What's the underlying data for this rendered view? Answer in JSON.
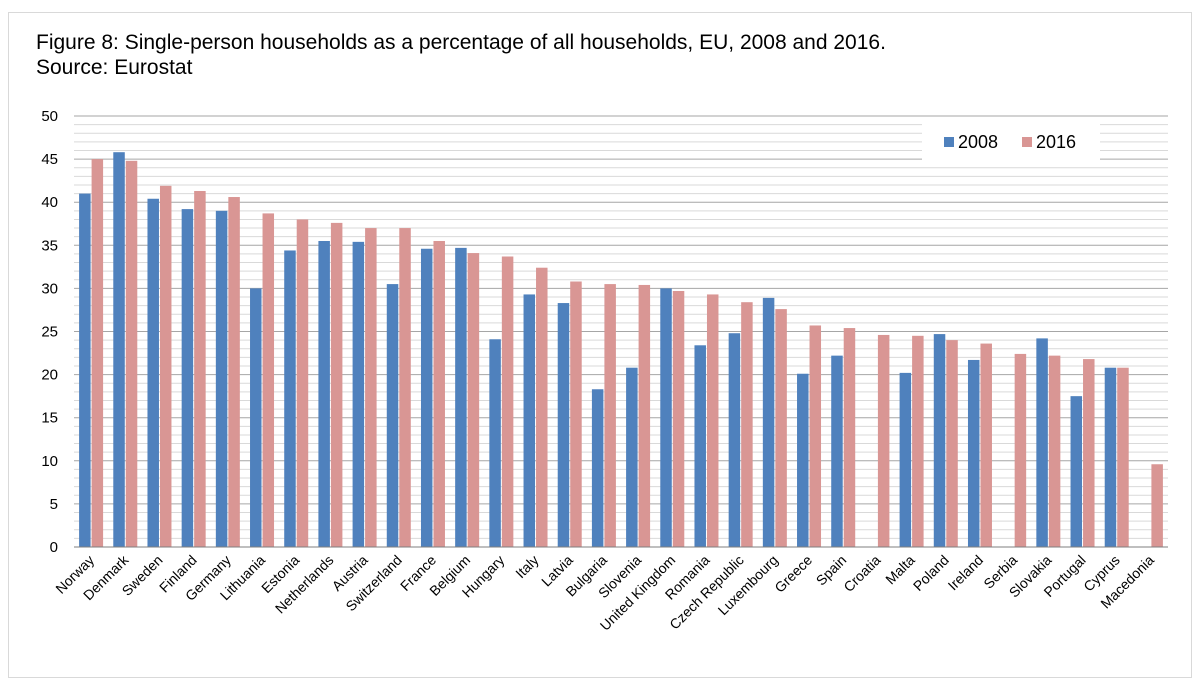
{
  "colors": {
    "s2008": "#4f81bd",
    "s2016": "#d99694",
    "grid": "#bfbfbf",
    "axis": "#7f7f7f"
  },
  "chart_data": {
    "type": "bar",
    "title": "Figure 8: Single-person households as a percentage of all households, EU, 2008 and 2016. Source: Eurostat",
    "xlabel": "",
    "ylabel": "",
    "ylim": [
      0,
      50
    ],
    "yticks": [
      "0",
      "5",
      "10",
      "15",
      "20",
      "25",
      "30",
      "35",
      "40",
      "45",
      "50"
    ],
    "grid": true,
    "legend_position": "top-right",
    "categories": [
      "Norway",
      "Denmark",
      "Sweden",
      "Finland",
      "Germany",
      "Lithuania",
      "Estonia",
      "Netherlands",
      "Austria",
      "Switzerland",
      "France",
      "Belgium",
      "Hungary",
      "Italy",
      "Latvia",
      "Bulgaria",
      "Slovenia",
      "United Kingdom",
      "Romania",
      "Czech Republic",
      "Luxembourg",
      "Greece",
      "Spain",
      "Croatia",
      "Malta",
      "Poland",
      "Ireland",
      "Serbia",
      "Slovakia",
      "Portugal",
      "Cyprus",
      "Macedonia"
    ],
    "series": [
      {
        "name": "2008",
        "values": [
          41.0,
          45.8,
          40.4,
          39.2,
          39.0,
          30.0,
          34.4,
          35.5,
          35.4,
          30.5,
          34.6,
          34.7,
          24.1,
          29.3,
          28.3,
          18.3,
          20.8,
          30.0,
          23.4,
          24.8,
          28.9,
          20.1,
          22.2,
          null,
          20.2,
          24.7,
          21.7,
          null,
          24.2,
          17.5,
          20.8,
          null
        ]
      },
      {
        "name": "2016",
        "values": [
          45.0,
          44.8,
          41.9,
          41.3,
          40.6,
          38.7,
          38.0,
          37.6,
          37.0,
          37.0,
          35.5,
          34.1,
          33.7,
          32.4,
          30.8,
          30.5,
          30.4,
          29.7,
          29.3,
          28.4,
          27.6,
          25.7,
          25.4,
          24.6,
          24.5,
          24.0,
          23.6,
          22.4,
          22.2,
          21.8,
          20.8,
          9.6
        ]
      }
    ]
  }
}
